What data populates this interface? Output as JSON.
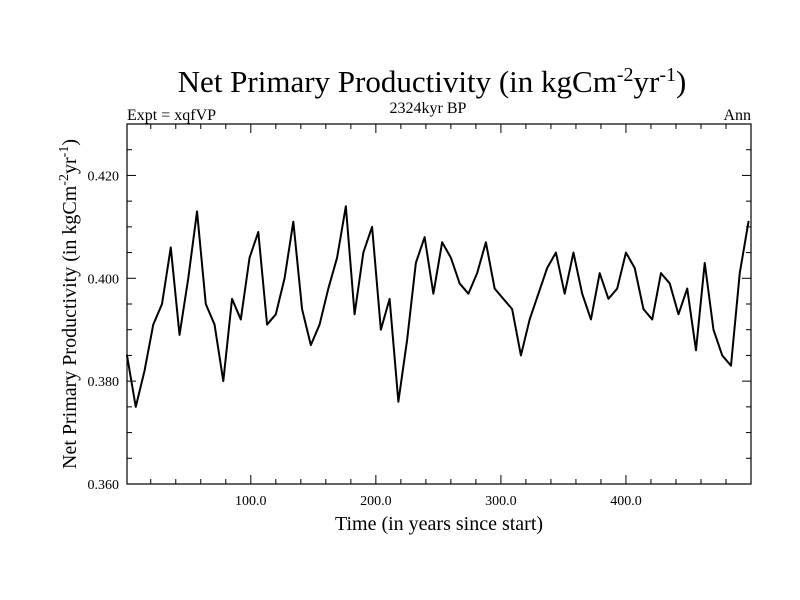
{
  "chart_data": {
    "type": "line",
    "title": {
      "main": "Net Primary Productivity (in kgCm",
      "sup1": "-2",
      "mid": "yr",
      "sup2": "-1",
      "end": ")"
    },
    "subtitle_left": "Expt = xqfVP",
    "subtitle_center": "2324kyr BP",
    "subtitle_right": "Ann",
    "xlabel": "Time (in years since start)",
    "ylabel": {
      "main": "Net Primary Productivity (in kgCm",
      "sup1": "-2",
      "mid": "yr",
      "sup2": "-1",
      "end": ")"
    },
    "xlim": [
      1,
      500
    ],
    "ylim": [
      0.36,
      0.43
    ],
    "xticks": [
      100,
      200,
      300,
      400
    ],
    "xticklabels": [
      "100.0",
      "200.0",
      "300.0",
      "400.0"
    ],
    "yticks": [
      0.36,
      0.38,
      0.4,
      0.42
    ],
    "yticklabels": [
      "0.360",
      "0.380",
      "0.400",
      "0.420"
    ],
    "series": [
      {
        "name": "Net Primary Productivity",
        "x": [
          1,
          8,
          15,
          22,
          29,
          36,
          43,
          50,
          57,
          64,
          71,
          78,
          85,
          92,
          99,
          106,
          113,
          120,
          127,
          134,
          141,
          148,
          155,
          162,
          169,
          176,
          183,
          190,
          197,
          204,
          211,
          218,
          225,
          232,
          239,
          246,
          253,
          260,
          267,
          274,
          281,
          288,
          295,
          302,
          309,
          316,
          323,
          330,
          337,
          344,
          351,
          358,
          365,
          372,
          379,
          386,
          393,
          400,
          407,
          414,
          421,
          428,
          435,
          442,
          449,
          456,
          463,
          470,
          477,
          484,
          491,
          498
        ],
        "values": [
          0.385,
          0.375,
          0.382,
          0.391,
          0.395,
          0.406,
          0.389,
          0.4,
          0.413,
          0.395,
          0.391,
          0.38,
          0.396,
          0.392,
          0.404,
          0.409,
          0.391,
          0.393,
          0.4,
          0.411,
          0.394,
          0.387,
          0.391,
          0.398,
          0.404,
          0.414,
          0.393,
          0.405,
          0.41,
          0.39,
          0.396,
          0.376,
          0.388,
          0.403,
          0.408,
          0.397,
          0.407,
          0.404,
          0.399,
          0.397,
          0.401,
          0.407,
          0.398,
          0.396,
          0.394,
          0.385,
          0.392,
          0.397,
          0.402,
          0.405,
          0.397,
          0.405,
          0.397,
          0.392,
          0.401,
          0.396,
          0.398,
          0.405,
          0.402,
          0.394,
          0.392,
          0.401,
          0.399,
          0.393,
          0.398,
          0.386,
          0.403,
          0.39,
          0.385,
          0.383,
          0.401,
          0.411
        ]
      }
    ]
  }
}
